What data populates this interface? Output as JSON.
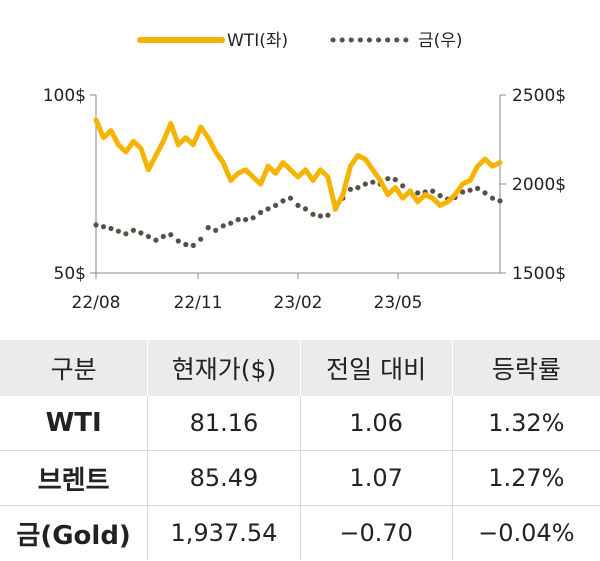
{
  "chart_data": {
    "type": "line",
    "legend": {
      "position": "top-center",
      "entries": [
        "WTI(좌)",
        "금(우)"
      ]
    },
    "x_ticks": [
      "22/08",
      "22/11",
      "23/02",
      "23/05"
    ],
    "y_left": {
      "ticks": [
        "100$",
        "50$"
      ],
      "range": [
        50,
        100
      ]
    },
    "y_right": {
      "ticks": [
        "2500$",
        "2000$",
        "1500$"
      ],
      "range": [
        1500,
        2500
      ]
    },
    "series": [
      {
        "name": "WTI(좌)",
        "axis": "left",
        "color": "#f5b400",
        "style": "solid",
        "x": [
          "2022-08-01",
          "2022-08-08",
          "2022-08-15",
          "2022-08-22",
          "2022-08-29",
          "2022-09-05",
          "2022-09-12",
          "2022-09-19",
          "2022-09-26",
          "2022-10-03",
          "2022-10-10",
          "2022-10-17",
          "2022-10-24",
          "2022-10-31",
          "2022-11-07",
          "2022-11-14",
          "2022-11-21",
          "2022-11-28",
          "2022-12-05",
          "2022-12-12",
          "2022-12-19",
          "2022-12-26",
          "2023-01-02",
          "2023-01-09",
          "2023-01-16",
          "2023-01-23",
          "2023-01-30",
          "2023-02-06",
          "2023-02-13",
          "2023-02-20",
          "2023-02-27",
          "2023-03-06",
          "2023-03-13",
          "2023-03-20",
          "2023-03-27",
          "2023-04-03",
          "2023-04-10",
          "2023-04-17",
          "2023-04-24",
          "2023-05-01",
          "2023-05-08",
          "2023-05-15",
          "2023-05-22",
          "2023-05-29",
          "2023-06-05",
          "2023-06-12",
          "2023-06-19",
          "2023-06-26",
          "2023-07-03",
          "2023-07-10",
          "2023-07-17",
          "2023-07-24",
          "2023-07-31",
          "2023-08-07",
          "2023-08-14"
        ],
        "values": [
          93,
          88,
          90,
          86,
          84,
          87,
          85,
          79,
          83,
          87,
          92,
          86,
          88,
          86,
          91,
          88,
          84,
          81,
          76,
          78,
          79,
          77,
          75,
          80,
          78,
          81,
          79,
          77,
          79,
          76,
          79,
          77,
          68,
          72,
          80,
          83,
          82,
          79,
          76,
          72,
          74,
          71,
          73,
          70,
          72,
          71,
          69,
          70,
          72,
          75,
          76,
          80,
          82,
          80,
          81
        ]
      },
      {
        "name": "금(우)",
        "axis": "right",
        "color": "#5a4f45",
        "style": "dotted",
        "x": [
          "2022-08-01",
          "2022-08-08",
          "2022-08-15",
          "2022-08-22",
          "2022-08-29",
          "2022-09-05",
          "2022-09-12",
          "2022-09-19",
          "2022-09-26",
          "2022-10-03",
          "2022-10-10",
          "2022-10-17",
          "2022-10-24",
          "2022-10-31",
          "2022-11-07",
          "2022-11-14",
          "2022-11-21",
          "2022-11-28",
          "2022-12-05",
          "2022-12-12",
          "2022-12-19",
          "2022-12-26",
          "2023-01-02",
          "2023-01-09",
          "2023-01-16",
          "2023-01-23",
          "2023-01-30",
          "2023-02-06",
          "2023-02-13",
          "2023-02-20",
          "2023-02-27",
          "2023-03-06",
          "2023-03-13",
          "2023-03-20",
          "2023-03-27",
          "2023-04-03",
          "2023-04-10",
          "2023-04-17",
          "2023-04-24",
          "2023-05-01",
          "2023-05-08",
          "2023-05-15",
          "2023-05-22",
          "2023-05-29",
          "2023-06-05",
          "2023-06-12",
          "2023-06-19",
          "2023-06-26",
          "2023-07-03",
          "2023-07-10",
          "2023-07-17",
          "2023-07-24",
          "2023-07-31",
          "2023-08-07",
          "2023-08-14"
        ],
        "values": [
          1770,
          1760,
          1750,
          1735,
          1720,
          1740,
          1725,
          1705,
          1685,
          1705,
          1715,
          1680,
          1660,
          1655,
          1690,
          1755,
          1740,
          1765,
          1780,
          1800,
          1800,
          1810,
          1840,
          1860,
          1880,
          1905,
          1920,
          1880,
          1860,
          1830,
          1820,
          1825,
          1860,
          1920,
          1970,
          1980,
          2000,
          2010,
          2000,
          2030,
          2025,
          1990,
          1960,
          1950,
          1955,
          1960,
          1935,
          1915,
          1925,
          1955,
          1965,
          1975,
          1950,
          1920,
          1905
        ]
      }
    ]
  },
  "table": {
    "headers": [
      "구분",
      "현재가($)",
      "전일 대비",
      "등락률"
    ],
    "rows": [
      [
        "WTI",
        "81.16",
        "1.06",
        "1.32%"
      ],
      [
        "브렌트",
        "85.49",
        "1.07",
        "1.27%"
      ],
      [
        "금(Gold)",
        "1,937.54",
        "−0.70",
        "−0.04%"
      ]
    ]
  }
}
